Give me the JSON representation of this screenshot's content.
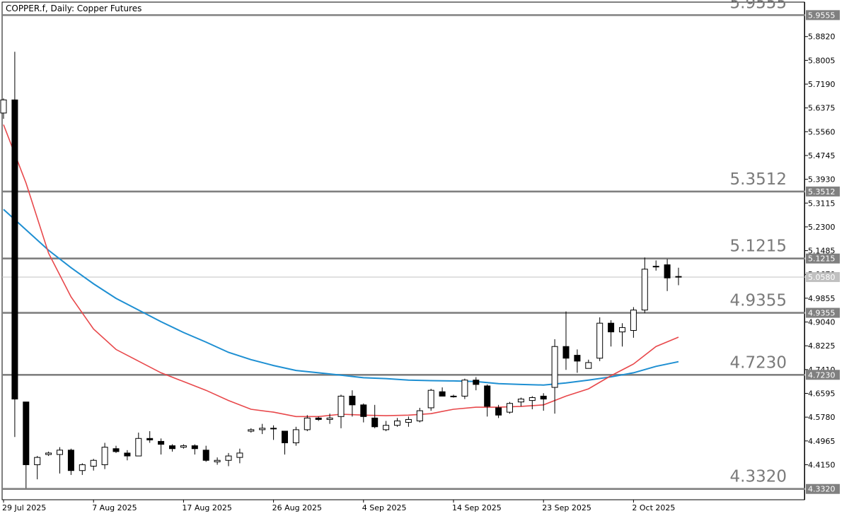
{
  "header": {
    "symbol_title": "COPPER.f, Daily:  Copper Futures"
  },
  "colors": {
    "level_line": "#808080",
    "ma_fast": "#e8484b",
    "ma_slow": "#1e8fd2",
    "candle_bull_fill": "#ffffff",
    "candle_bear_fill": "#000000",
    "price_line": "#c0c0c0"
  },
  "chart_data": {
    "type": "candlestick",
    "title": "COPPER.f, Daily:  Copper Futures",
    "ylim": [
      4.295,
      6.0
    ],
    "y_ticks": [
      "5.8820",
      "5.8005",
      "5.7190",
      "5.6375",
      "5.5560",
      "5.4745",
      "5.3930",
      "5.3115",
      "5.2300",
      "5.1485",
      "5.0670",
      "4.9855",
      "4.9040",
      "4.8225",
      "4.7410",
      "4.6595",
      "4.5780",
      "4.4965",
      "4.4150"
    ],
    "x_labels": [
      "29 Jul 2025",
      "7 Aug 2025",
      "17 Aug 2025",
      "26 Aug 2025",
      "4 Sep 2025",
      "14 Sep 2025",
      "23 Sep 2025",
      "2 Oct 2025"
    ],
    "x_label_index": [
      0,
      8,
      16,
      24,
      32,
      40,
      48,
      56
    ],
    "levels": [
      {
        "value": 5.9555,
        "label": "5.9555"
      },
      {
        "value": 5.3512,
        "label": "5.3512"
      },
      {
        "value": 5.1215,
        "label": "5.1215"
      },
      {
        "value": 4.9355,
        "label": "4.9355"
      },
      {
        "value": 4.723,
        "label": "4.7230"
      },
      {
        "value": 4.332,
        "label": "4.3320"
      }
    ],
    "current_price": {
      "value": 5.058,
      "label": "5.0580"
    },
    "candles": [
      [
        5.62,
        5.67,
        5.6,
        5.665
      ],
      [
        5.665,
        5.83,
        4.51,
        4.64
      ],
      [
        4.63,
        4.63,
        4.335,
        4.415
      ],
      [
        4.415,
        4.445,
        4.365,
        4.44
      ],
      [
        4.45,
        4.46,
        4.445,
        4.455
      ],
      [
        4.45,
        4.475,
        4.385,
        4.465
      ],
      [
        4.465,
        4.47,
        4.38,
        4.395
      ],
      [
        4.395,
        4.42,
        4.38,
        4.415
      ],
      [
        4.41,
        4.435,
        4.395,
        4.43
      ],
      [
        4.415,
        4.49,
        4.4,
        4.475
      ],
      [
        4.47,
        4.48,
        4.455,
        4.46
      ],
      [
        4.455,
        4.465,
        4.43,
        4.445
      ],
      [
        4.445,
        4.525,
        4.445,
        4.505
      ],
      [
        4.505,
        4.53,
        4.49,
        4.5
      ],
      [
        4.495,
        4.505,
        4.45,
        4.485
      ],
      [
        4.48,
        4.485,
        4.46,
        4.47
      ],
      [
        4.475,
        4.485,
        4.47,
        4.48
      ],
      [
        4.48,
        4.485,
        4.45,
        4.47
      ],
      [
        4.465,
        4.48,
        4.425,
        4.43
      ],
      [
        4.425,
        4.44,
        4.415,
        4.43
      ],
      [
        4.43,
        4.455,
        4.41,
        4.445
      ],
      [
        4.44,
        4.47,
        4.42,
        4.455
      ],
      [
        4.53,
        4.54,
        4.525,
        4.535
      ],
      [
        4.535,
        4.555,
        4.52,
        4.54
      ],
      [
        4.54,
        4.55,
        4.5,
        4.54
      ],
      [
        4.53,
        4.53,
        4.45,
        4.49
      ],
      [
        4.49,
        4.545,
        4.48,
        4.535
      ],
      [
        4.535,
        4.585,
        4.53,
        4.575
      ],
      [
        4.575,
        4.58,
        4.565,
        4.57
      ],
      [
        4.57,
        4.59,
        4.555,
        4.575
      ],
      [
        4.58,
        4.655,
        4.54,
        4.65
      ],
      [
        4.65,
        4.67,
        4.58,
        4.62
      ],
      [
        4.62,
        4.625,
        4.56,
        4.58
      ],
      [
        4.575,
        4.62,
        4.54,
        4.545
      ],
      [
        4.535,
        4.565,
        4.53,
        4.55
      ],
      [
        4.55,
        4.575,
        4.545,
        4.565
      ],
      [
        4.56,
        4.58,
        4.545,
        4.57
      ],
      [
        4.565,
        4.61,
        4.56,
        4.6
      ],
      [
        4.61,
        4.675,
        4.6,
        4.67
      ],
      [
        4.665,
        4.68,
        4.65,
        4.65
      ],
      [
        4.65,
        4.655,
        4.645,
        4.65
      ],
      [
        4.65,
        4.71,
        4.64,
        4.705
      ],
      [
        4.705,
        4.715,
        4.67,
        4.69
      ],
      [
        4.685,
        4.69,
        4.58,
        4.615
      ],
      [
        4.61,
        4.62,
        4.575,
        4.585
      ],
      [
        4.595,
        4.63,
        4.59,
        4.625
      ],
      [
        4.63,
        4.645,
        4.615,
        4.64
      ],
      [
        4.635,
        4.65,
        4.605,
        4.645
      ],
      [
        4.65,
        4.66,
        4.6,
        4.64
      ],
      [
        4.68,
        4.845,
        4.59,
        4.82
      ],
      [
        4.82,
        4.94,
        4.74,
        4.78
      ],
      [
        4.79,
        4.81,
        4.73,
        4.77
      ],
      [
        4.745,
        4.775,
        4.745,
        4.765
      ],
      [
        4.78,
        4.92,
        4.77,
        4.9
      ],
      [
        4.9,
        4.91,
        4.82,
        4.87
      ],
      [
        4.87,
        4.9,
        4.82,
        4.885
      ],
      [
        4.875,
        4.955,
        4.85,
        4.945
      ],
      [
        4.945,
        5.125,
        4.935,
        5.085
      ],
      [
        5.095,
        5.115,
        5.08,
        5.095
      ],
      [
        5.1,
        5.12,
        5.01,
        5.055
      ],
      [
        5.06,
        5.09,
        5.03,
        5.06
      ]
    ],
    "ma_fast": [
      [
        0,
        5.58
      ],
      [
        2,
        5.38
      ],
      [
        4,
        5.14
      ],
      [
        6,
        4.99
      ],
      [
        8,
        4.88
      ],
      [
        10,
        4.81
      ],
      [
        12,
        4.77
      ],
      [
        14,
        4.73
      ],
      [
        16,
        4.7
      ],
      [
        18,
        4.67
      ],
      [
        20,
        4.635
      ],
      [
        22,
        4.605
      ],
      [
        24,
        4.595
      ],
      [
        26,
        4.58
      ],
      [
        28,
        4.58
      ],
      [
        30,
        4.588
      ],
      [
        32,
        4.585
      ],
      [
        34,
        4.583
      ],
      [
        36,
        4.585
      ],
      [
        38,
        4.59
      ],
      [
        40,
        4.605
      ],
      [
        42,
        4.612
      ],
      [
        44,
        4.612
      ],
      [
        46,
        4.615
      ],
      [
        48,
        4.62
      ],
      [
        50,
        4.65
      ],
      [
        52,
        4.675
      ],
      [
        54,
        4.72
      ],
      [
        56,
        4.76
      ],
      [
        58,
        4.82
      ],
      [
        60,
        4.852
      ]
    ],
    "ma_slow": [
      [
        0,
        5.29
      ],
      [
        2,
        5.22
      ],
      [
        4,
        5.15
      ],
      [
        6,
        5.09
      ],
      [
        8,
        5.035
      ],
      [
        10,
        4.985
      ],
      [
        12,
        4.945
      ],
      [
        14,
        4.905
      ],
      [
        16,
        4.868
      ],
      [
        18,
        4.835
      ],
      [
        20,
        4.8
      ],
      [
        22,
        4.775
      ],
      [
        24,
        4.755
      ],
      [
        26,
        4.738
      ],
      [
        28,
        4.73
      ],
      [
        30,
        4.722
      ],
      [
        32,
        4.713
      ],
      [
        34,
        4.71
      ],
      [
        36,
        4.705
      ],
      [
        38,
        4.703
      ],
      [
        40,
        4.702
      ],
      [
        42,
        4.7
      ],
      [
        44,
        4.693
      ],
      [
        46,
        4.69
      ],
      [
        48,
        4.688
      ],
      [
        50,
        4.695
      ],
      [
        52,
        4.705
      ],
      [
        54,
        4.716
      ],
      [
        56,
        4.73
      ],
      [
        58,
        4.752
      ],
      [
        60,
        4.768
      ]
    ]
  }
}
